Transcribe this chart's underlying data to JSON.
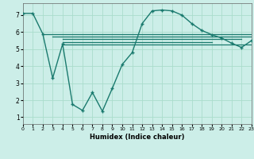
{
  "main_line_x": [
    0,
    1,
    2,
    3,
    4,
    5,
    6,
    7,
    8,
    9,
    10,
    11,
    12,
    13,
    14,
    15,
    16,
    17,
    18,
    19,
    20,
    21,
    22,
    23
  ],
  "main_line_y": [
    7.1,
    7.1,
    5.9,
    3.3,
    5.3,
    1.75,
    1.4,
    2.45,
    1.35,
    2.7,
    4.1,
    4.8,
    6.5,
    7.25,
    7.3,
    7.25,
    7.0,
    6.5,
    6.1,
    5.85,
    5.65,
    5.35,
    5.1,
    5.5
  ],
  "hline1": {
    "x": [
      2,
      23
    ],
    "y": [
      5.9,
      5.9
    ]
  },
  "hline2": {
    "x": [
      3,
      23
    ],
    "y": [
      5.75,
      5.75
    ]
  },
  "hline3": {
    "x": [
      4,
      22
    ],
    "y": [
      5.6,
      5.6
    ]
  },
  "hline4": {
    "x": [
      4,
      19
    ],
    "y": [
      5.4,
      5.4
    ]
  },
  "hline5": {
    "x": [
      4,
      23
    ],
    "y": [
      5.25,
      5.25
    ]
  },
  "color": "#1a7a6e",
  "bg_color": "#cceee8",
  "grid_color": "#aaddcc",
  "xlabel": "Humidex (Indice chaleur)",
  "ylim": [
    0.6,
    7.7
  ],
  "xlim": [
    0,
    23
  ],
  "yticks": [
    1,
    2,
    3,
    4,
    5,
    6,
    7
  ],
  "xticks": [
    0,
    1,
    2,
    3,
    4,
    5,
    6,
    7,
    8,
    9,
    10,
    11,
    12,
    13,
    14,
    15,
    16,
    17,
    18,
    19,
    20,
    21,
    22,
    23
  ]
}
